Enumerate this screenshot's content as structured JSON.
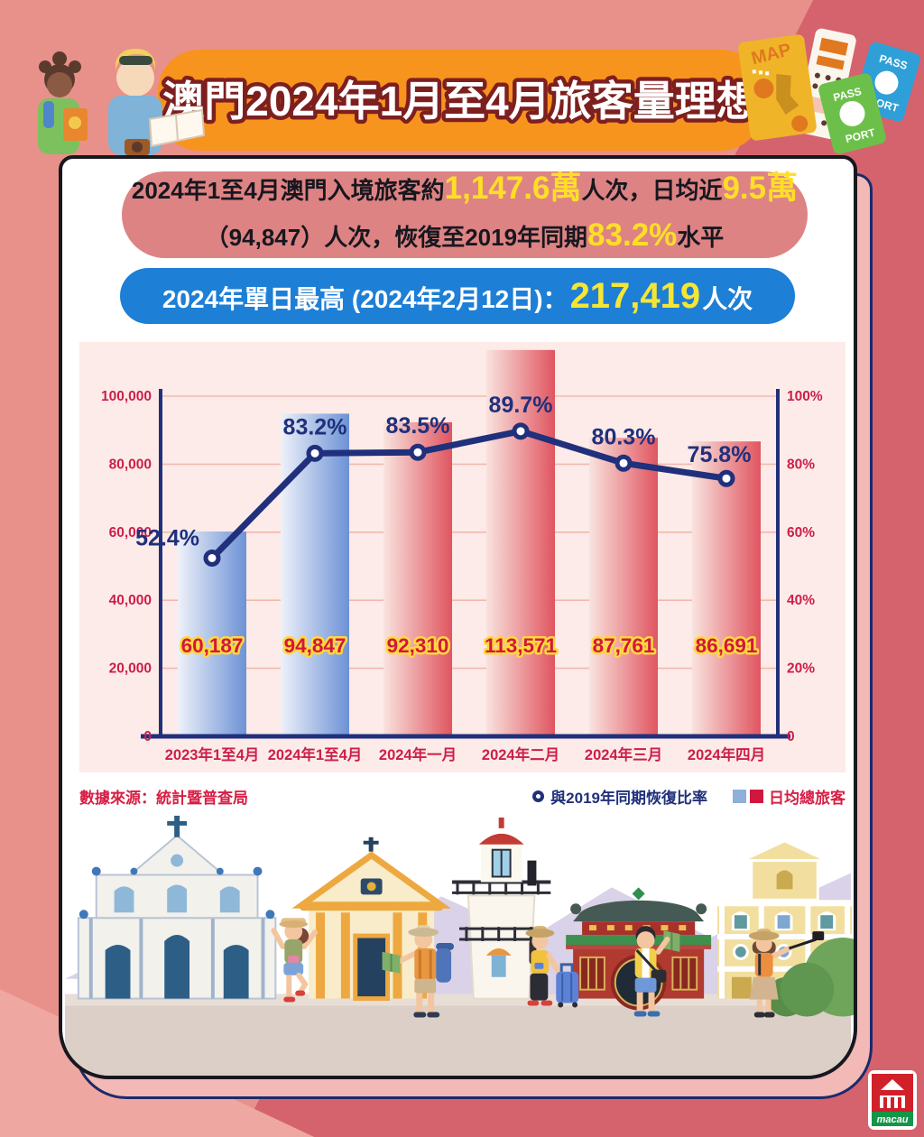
{
  "page": {
    "title": "澳門2024年1月至4月旅客量理想"
  },
  "summary": {
    "l1a": "2024年1至4月澳門入境旅客約",
    "l1b": "1,147.6萬",
    "l1c": "人次，日均近",
    "l1d": "9.5萬",
    "l2a": "（94,847）人次，恢復至2019年同期",
    "l2b": "83.2%",
    "l2c": "水平"
  },
  "daily_high": {
    "label": "2024年單日最高 (2024年2月12日)：",
    "value": "217,419",
    "suffix": "人次"
  },
  "footer": {
    "source": "數據來源：統計暨普查局"
  },
  "decor": {
    "map": "MAP",
    "pass": "PASS",
    "port": "PORT"
  },
  "logo": {
    "label": "macau"
  },
  "chart_data": {
    "type": "bar+line",
    "categories": [
      "2023年1至4月",
      "2024年1至4月",
      "2024年一月",
      "2024年二月",
      "2024年三月",
      "2024年四月"
    ],
    "series": [
      {
        "name": "日均總旅客",
        "type": "bar",
        "values": [
          60187,
          94847,
          92310,
          113571,
          87761,
          86691
        ],
        "value_labels": [
          "60,187",
          "94,847",
          "92,310",
          "113,571",
          "87,761",
          "86,691"
        ],
        "bar_palette": [
          "blue",
          "blue",
          "red",
          "red",
          "red",
          "red"
        ]
      },
      {
        "name": "與2019年同期恢復比率",
        "type": "line",
        "values": [
          52.4,
          83.2,
          83.5,
          89.7,
          80.3,
          75.8
        ],
        "value_labels": [
          "52.4%",
          "83.2%",
          "83.5%",
          "89.7%",
          "80.3%",
          "75.8%"
        ]
      }
    ],
    "y_axis_left": {
      "max": 100000,
      "ticks": [
        "0",
        "20,000",
        "40,000",
        "60,000",
        "80,000",
        "100,000"
      ]
    },
    "y_axis_right": {
      "max": 100,
      "ticks": [
        "0",
        "20%",
        "40%",
        "60%",
        "80%",
        "100%"
      ]
    },
    "grid": true,
    "legend_position": "bottom-right",
    "colors": {
      "line": "#20307c",
      "bar_blue": "#6d92d6",
      "bar_red": "#e05560",
      "axis_text": "#cd1e4a"
    }
  }
}
